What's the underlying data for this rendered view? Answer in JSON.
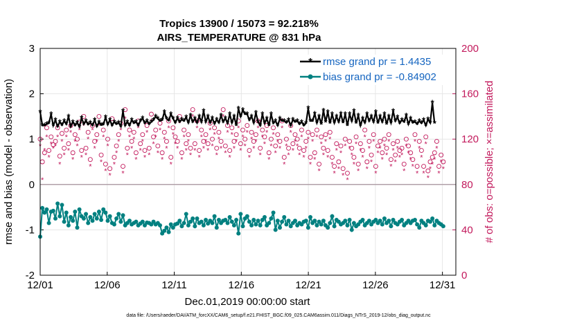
{
  "chart_data": {
    "type": "line",
    "title_line1": "Tropics 13900 / 15073 = 92.218%",
    "title_line2": "AIRS_TEMPERATURE @ 831 hPa",
    "xlabel": "Dec.01,2019 00:00:00 start",
    "ylabel_left": "rmse and bias (model - observation)",
    "ylabel_right": "# of obs: o=possible; ×=assimilated",
    "ylim_left": [
      -2,
      3
    ],
    "ylim_right": [
      0,
      200
    ],
    "xlim_days": [
      0,
      31
    ],
    "x_ticks": [
      {
        "day": 0,
        "label": "12/01"
      },
      {
        "day": 5,
        "label": "12/06"
      },
      {
        "day": 10,
        "label": "12/11"
      },
      {
        "day": 15,
        "label": "12/16"
      },
      {
        "day": 20,
        "label": "12/21"
      },
      {
        "day": 25,
        "label": "12/26"
      },
      {
        "day": 30,
        "label": "12/31"
      }
    ],
    "y_ticks_left": [
      "-2",
      "-1",
      "0",
      "1",
      "2",
      "3"
    ],
    "y_ticks_left_values": [
      -2,
      -1,
      0,
      1,
      2,
      3
    ],
    "y_ticks_right": [
      "0",
      "40",
      "80",
      "120",
      "160",
      "200"
    ],
    "y_ticks_right_values": [
      0,
      40,
      80,
      120,
      160,
      200
    ],
    "grid": true,
    "legend_position": "top-right",
    "series": [
      {
        "name": "rmse grand pr = 1.4435",
        "color": "#000000",
        "axis": "left",
        "values": [
          1.6,
          1.3,
          1.3,
          1.33,
          1.35,
          1.55,
          1.3,
          1.42,
          1.28,
          1.38,
          1.31,
          1.4,
          1.33,
          1.5,
          1.28,
          1.38,
          1.3,
          1.36,
          1.27,
          1.47,
          1.33,
          1.4,
          1.32,
          1.36,
          1.3,
          1.42,
          1.28,
          1.37,
          1.31,
          1.32,
          1.48,
          1.32,
          1.42,
          1.3,
          1.38,
          1.33,
          1.36,
          1.28,
          1.62,
          1.3,
          1.38,
          1.3,
          1.42,
          1.35,
          1.38,
          1.3,
          1.4,
          1.46,
          1.35,
          1.4,
          1.33,
          1.38,
          1.42,
          1.5,
          1.45,
          1.4,
          1.42,
          1.6,
          1.45,
          1.41,
          1.55,
          1.45,
          1.36,
          1.46,
          1.38,
          1.43,
          1.4,
          1.48,
          1.36,
          1.52,
          1.38,
          1.45,
          1.36,
          1.5,
          1.38,
          1.62,
          1.38,
          1.5,
          1.36,
          1.46,
          1.34,
          1.43,
          1.36,
          1.52,
          1.38,
          1.46,
          1.35,
          1.55,
          1.36,
          1.5,
          1.3,
          1.67,
          1.5,
          1.64,
          1.55,
          1.55,
          1.42,
          1.5,
          1.36,
          1.58,
          1.38,
          1.3,
          1.55,
          1.35,
          1.45,
          1.3,
          1.55,
          1.35,
          1.4,
          1.3,
          1.45,
          1.4,
          1.4,
          1.36,
          1.42,
          1.3,
          1.43,
          1.38,
          1.4,
          1.33,
          1.38,
          1.3,
          1.35,
          1.68,
          1.4,
          1.4,
          1.56,
          1.36,
          1.5,
          1.33,
          1.63,
          1.38,
          1.6,
          1.35,
          1.55,
          1.36,
          1.5,
          1.38,
          1.56,
          1.36,
          1.55,
          1.3,
          1.55,
          1.4,
          1.62,
          1.35,
          1.52,
          1.3,
          1.45,
          1.36,
          1.55,
          1.4,
          1.5,
          1.38,
          1.6,
          1.35,
          1.5,
          1.38,
          1.55,
          1.33,
          1.5,
          1.36,
          1.62,
          1.4,
          1.48,
          1.35,
          1.42,
          1.38,
          1.52,
          1.33,
          1.45,
          1.36,
          1.38,
          1.33,
          1.4,
          1.35,
          1.42,
          1.3,
          1.44,
          1.36,
          1.8,
          1.35
        ],
        "x_start": 0.0,
        "x_step": 0.1625
      },
      {
        "name": "bias grand pr = -0.84902",
        "color": "#008080",
        "axis": "left",
        "values": [
          -1.15,
          -0.52,
          -0.62,
          -0.55,
          -0.85,
          -0.6,
          -0.58,
          -0.75,
          -0.42,
          -0.7,
          -0.45,
          -0.82,
          -0.62,
          -0.9,
          -0.72,
          -0.8,
          -0.6,
          -0.95,
          -0.55,
          -0.7,
          -0.75,
          -0.65,
          -0.85,
          -0.72,
          -0.8,
          -0.65,
          -0.75,
          -0.6,
          -0.78,
          -0.55,
          -0.62,
          -0.8,
          -0.7,
          -0.85,
          -0.88,
          -0.75,
          -0.65,
          -0.82,
          -0.68,
          -0.9,
          -0.85,
          -0.8,
          -0.88,
          -0.85,
          -0.82,
          -0.9,
          -0.86,
          -0.82,
          -0.9,
          -0.84,
          -0.85,
          -0.88,
          -0.82,
          -0.88,
          -0.85,
          -0.9,
          -1.08,
          -1.02,
          -0.95,
          -1.05,
          -0.88,
          -0.95,
          -0.88,
          -0.86,
          -0.8,
          -0.92,
          -0.85,
          -0.65,
          -0.9,
          -0.82,
          -0.75,
          -0.92,
          -0.75,
          -0.85,
          -0.82,
          -0.9,
          -0.78,
          -0.86,
          -0.8,
          -0.85,
          -0.7,
          -0.95,
          -0.78,
          -0.85,
          -0.8,
          -0.78,
          -0.85,
          -0.72,
          -0.82,
          -0.9,
          -0.78,
          -1.08,
          -0.65,
          -0.92,
          -0.75,
          -0.7,
          -0.82,
          -0.9,
          -0.78,
          -0.88,
          -0.8,
          -0.9,
          -0.78,
          -0.72,
          -0.9,
          -0.85,
          -0.75,
          -0.62,
          -1.0,
          -0.8,
          -0.95,
          -0.82,
          -0.72,
          -0.88,
          -0.8,
          -0.92,
          -0.85,
          -0.8,
          -0.9,
          -0.85,
          -0.88,
          -0.82,
          -0.8,
          -0.95,
          -0.72,
          -0.85,
          -0.8,
          -0.9,
          -0.82,
          -0.88,
          -0.8,
          -0.9,
          -0.95,
          -0.85,
          -0.7,
          -0.92,
          -0.78,
          -0.82,
          -0.88,
          -0.85,
          -0.8,
          -0.9,
          -0.78,
          -1.0,
          -0.85,
          -0.92,
          -0.88,
          -0.82,
          -0.78,
          -0.9,
          -0.85,
          -0.8,
          -0.88,
          -0.82,
          -0.78,
          -0.85,
          -0.8,
          -0.88,
          -0.75,
          -0.85,
          -0.8,
          -0.92,
          -0.78,
          -0.85,
          -0.88,
          -0.82,
          -0.78,
          -0.9,
          -0.85,
          -0.8,
          -0.85,
          -0.8,
          -0.78,
          -0.88,
          -0.95,
          -0.8,
          -0.85,
          -0.9,
          -0.8,
          -0.82,
          -0.75,
          -0.9,
          -0.8,
          -0.85,
          -0.88,
          -0.92
        ],
        "x_start": 0.0,
        "x_step": 0.1625
      },
      {
        "name": "obs possible",
        "color": "#c2185b",
        "axis": "right",
        "marker": "circle",
        "values": [
          120,
          100,
          108,
          130,
          110,
          122,
          115,
          118,
          130,
          105,
          125,
          112,
          128,
          116,
          132,
          108,
          124,
          120,
          135,
          110,
          140,
          112,
          126,
          102,
          132,
          118,
          124,
          140,
          106,
          128,
          98,
          120,
          94,
          138,
          104,
          114,
          124,
          134,
          96,
          146,
          112,
          128,
          118,
          126,
          108,
          136,
          116,
          124,
          110,
          132,
          112,
          142,
          122,
          128,
          114,
          134,
          108,
          126,
          118,
          136,
          104,
          130,
          122,
          118,
          140,
          108,
          128,
          116,
          124,
          112,
          146,
          116,
          136,
          110,
          128,
          118,
          124,
          116,
          134,
          120,
          130,
          112,
          126,
          118,
          146,
          114,
          132,
          110,
          130,
          118,
          124,
          136,
          116,
          128,
          120,
          132,
          110,
          126,
          118,
          124,
          136,
          112,
          128,
          122,
          132,
          108,
          120,
          130,
          114,
          124,
          118,
          136,
          104,
          120,
          112,
          132,
          116,
          124,
          120,
          112,
          128,
          110,
          118,
          126,
          104,
          124,
          108,
          128,
          98,
          122,
          112,
          124,
          110,
          126,
          104,
          96,
          116,
          100,
          114,
          94,
          120,
          90,
          118,
          112,
          104,
          122,
          98,
          116,
          110,
          128,
          100,
          118,
          106,
          124,
          96,
          114,
          118,
          108,
          120,
          112,
          124,
          102,
          116,
          106,
          118,
          110,
          112,
          98,
          120,
          114,
          108,
          102,
          124,
          96,
          118,
          110,
          96,
          122,
          92,
          100,
          104,
          108,
          118,
          96,
          106,
          100
        ],
        "x_start": 0.0,
        "x_step": 0.1625
      },
      {
        "name": "obs assimilated",
        "color": "#c2185b",
        "axis": "right",
        "marker": "star",
        "values": [
          114,
          84,
          110,
          122,
          104,
          116,
          112,
          114,
          122,
          98,
          118,
          106,
          122,
          110,
          126,
          102,
          118,
          114,
          128,
          104,
          132,
          106,
          120,
          96,
          128,
          112,
          118,
          132,
          100,
          122,
          92,
          114,
          88,
          132,
          98,
          108,
          118,
          128,
          90,
          138,
          106,
          122,
          112,
          120,
          102,
          130,
          110,
          118,
          104,
          126,
          106,
          136,
          116,
          122,
          108,
          128,
          102,
          120,
          112,
          130,
          98,
          124,
          116,
          112,
          134,
          102,
          122,
          110,
          118,
          106,
          140,
          110,
          130,
          104,
          122,
          112,
          118,
          110,
          128,
          114,
          124,
          106,
          120,
          112,
          140,
          108,
          126,
          104,
          124,
          112,
          118,
          130,
          110,
          122,
          114,
          126,
          104,
          120,
          112,
          118,
          130,
          106,
          122,
          116,
          126,
          102,
          114,
          124,
          108,
          118,
          112,
          130,
          98,
          114,
          106,
          126,
          110,
          118,
          114,
          106,
          122,
          104,
          112,
          120,
          98,
          118,
          102,
          122,
          92,
          116,
          106,
          118,
          104,
          120,
          98,
          90,
          110,
          94,
          108,
          88,
          114,
          84,
          112,
          106,
          98,
          116,
          92,
          110,
          104,
          122,
          94,
          112,
          100,
          118,
          90,
          108,
          112,
          102,
          114,
          106,
          118,
          96,
          110,
          100,
          112,
          104,
          106,
          92,
          114,
          108,
          102,
          96,
          118,
          90,
          112,
          104,
          90,
          116,
          86,
          94,
          98,
          102,
          112,
          90,
          100,
          94
        ],
        "x_start": 0.0,
        "x_step": 0.1625
      }
    ]
  },
  "legend": {
    "rmse_label": "rmse grand pr = 1.4435",
    "bias_label": "bias grand pr = -0.84902"
  },
  "footer": {
    "text": "data file: /Users/raeder/DAI/ATM_forcXX/CAM6_setup/f.e21.FHIST_BGC.f09_025.CAM6assim.011/Diags_NTrS_2019-12/obs_diag_output.nc"
  },
  "colors": {
    "rmse": "#000000",
    "bias": "#008080",
    "obs": "#c2185b",
    "legend_text": "#1565c0",
    "grid": "#e6e6e6",
    "zero_line": "#b0a0a8"
  }
}
